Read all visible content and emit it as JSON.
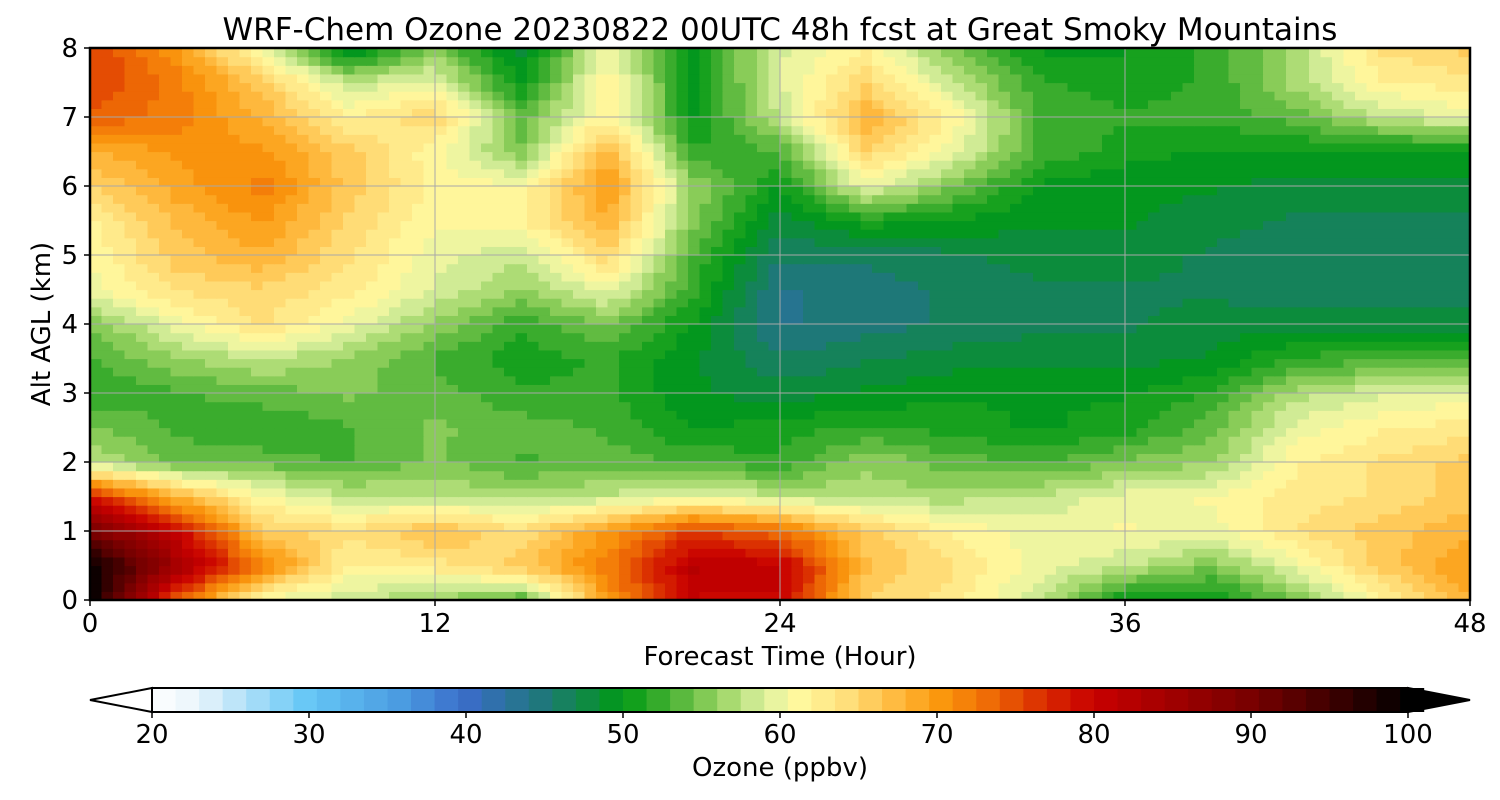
{
  "chart_data": {
    "type": "heatmap",
    "title": "WRF-Chem Ozone  20230822 00UTC 48h fcst at Great Smoky Mountains",
    "xlabel": "Forecast Time (Hour)",
    "ylabel": "Alt AGL (km)",
    "xlim": [
      0,
      48
    ],
    "ylim": [
      0,
      8
    ],
    "x_ticks": [
      0,
      12,
      24,
      36,
      48
    ],
    "y_ticks": [
      0,
      1,
      2,
      3,
      4,
      5,
      6,
      7,
      8
    ],
    "grid": true,
    "colorbar": {
      "label": "Ozone  (ppbv)",
      "min": 20,
      "max": 100,
      "ticks": [
        20,
        30,
        40,
        50,
        60,
        70,
        80,
        90,
        100
      ],
      "extend": "both",
      "orientation": "horizontal"
    },
    "x": [
      0,
      3,
      6,
      9,
      12,
      15,
      18,
      21,
      24,
      27,
      30,
      33,
      36,
      39,
      42,
      45,
      48
    ],
    "y": [
      0,
      0.5,
      1,
      1.5,
      2,
      2.5,
      3,
      3.5,
      4,
      4.5,
      5,
      5.5,
      6,
      6.5,
      7,
      7.5,
      8
    ],
    "z": [
      [
        100,
        74,
        60,
        58,
        56,
        53,
        70,
        80,
        80,
        65,
        63,
        58,
        50,
        50,
        55,
        62,
        68
      ],
      [
        100,
        85,
        72,
        62,
        63,
        66,
        72,
        82,
        81,
        67,
        64,
        60,
        58,
        55,
        60,
        66,
        70
      ],
      [
        90,
        80,
        66,
        64,
        67,
        64,
        70,
        76,
        73,
        66,
        62,
        60,
        61,
        60,
        64,
        66,
        68
      ],
      [
        78,
        68,
        61,
        58,
        58,
        57,
        58,
        60,
        58,
        57,
        57,
        58,
        60,
        61,
        63,
        64,
        66
      ],
      [
        58,
        54,
        54,
        53,
        55,
        53,
        54,
        53,
        52,
        56,
        54,
        53,
        55,
        56,
        62,
        64,
        66
      ],
      [
        55,
        53,
        52,
        53,
        55,
        54,
        53,
        50,
        51,
        52,
        51,
        50,
        51,
        54,
        60,
        62,
        63
      ],
      [
        52,
        53,
        54,
        55,
        54,
        52,
        52,
        49,
        48,
        49,
        50,
        50,
        50,
        52,
        57,
        59,
        60
      ],
      [
        53,
        56,
        58,
        56,
        53,
        51,
        52,
        49,
        46,
        47,
        48,
        48,
        48,
        49,
        52,
        53,
        53
      ],
      [
        55,
        60,
        64,
        60,
        56,
        52,
        55,
        50,
        44,
        45,
        46,
        47,
        47,
        48,
        48,
        48,
        48
      ],
      [
        60,
        64,
        65,
        63,
        59,
        56,
        60,
        52,
        44,
        45,
        46,
        47,
        47,
        47,
        46,
        46,
        46
      ],
      [
        61,
        66,
        68,
        64,
        60,
        58,
        65,
        53,
        46,
        46,
        47,
        48,
        48,
        47,
        46,
        46,
        46
      ],
      [
        62,
        67,
        70,
        65,
        61,
        62,
        68,
        55,
        48,
        51,
        50,
        49,
        49,
        48,
        47,
        47,
        47
      ],
      [
        65,
        69,
        72,
        66,
        62,
        61,
        70,
        56,
        50,
        60,
        55,
        50,
        49,
        49,
        48,
        48,
        48
      ],
      [
        68,
        70,
        70,
        66,
        61,
        55,
        68,
        52,
        53,
        65,
        60,
        53,
        51,
        50,
        50,
        50,
        50
      ],
      [
        74,
        72,
        68,
        62,
        65,
        54,
        62,
        50,
        58,
        68,
        62,
        53,
        52,
        52,
        54,
        58,
        60
      ],
      [
        76,
        72,
        66,
        58,
        60,
        50,
        62,
        50,
        59,
        65,
        58,
        52,
        51,
        52,
        57,
        62,
        63
      ],
      [
        76,
        70,
        60,
        48,
        55,
        48,
        60,
        50,
        59,
        62,
        55,
        50,
        50,
        52,
        57,
        64,
        66
      ]
    ]
  }
}
